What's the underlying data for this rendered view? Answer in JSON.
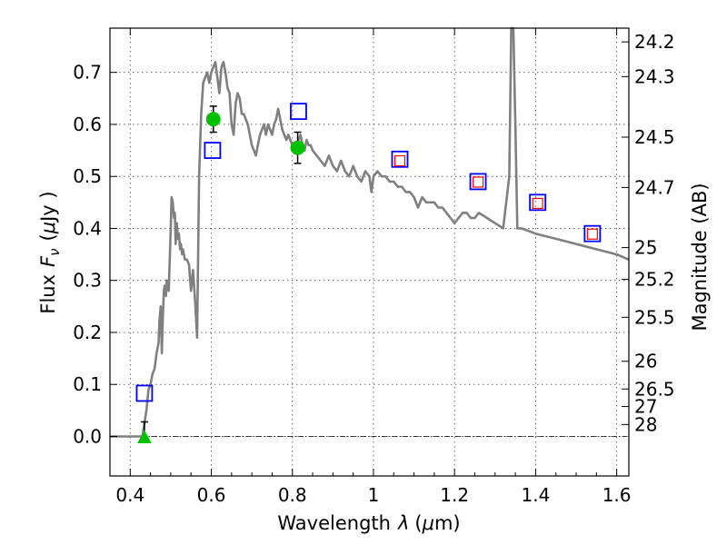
{
  "chart_data": {
    "type": "scatter",
    "title": "",
    "xlabel_prefix": "Wavelength",
    "xlabel_symbol": "λ",
    "xlabel_unit_open": "(",
    "xlabel_unit_mu": "μ",
    "xlabel_unit_rest": "m)",
    "ylabel_prefix": "Flux",
    "ylabel_symbol": "F",
    "ylabel_symbol_sub": "ν",
    "ylabel_unit_open": "(",
    "ylabel_unit_mu": "μ",
    "ylabel_unit_rest": "Jy )",
    "y2label": "Magnitude (AB)",
    "xlim": [
      0.35,
      1.63
    ],
    "ylim": [
      -0.076,
      0.785
    ],
    "grid": true,
    "xticks": [
      0.4,
      0.6,
      0.8,
      1.0,
      1.2,
      1.4,
      1.6
    ],
    "xtick_labels": [
      "0.4",
      "0.6",
      "0.8",
      "1",
      "1.2",
      "1.4",
      "1.6"
    ],
    "yticks": [
      0.0,
      0.1,
      0.2,
      0.3,
      0.4,
      0.5,
      0.6,
      0.7
    ],
    "ytick_labels": [
      "0.0",
      "0.1",
      "0.2",
      "0.3",
      "0.4",
      "0.5",
      "0.6",
      "0.7"
    ],
    "mag_ticks": [
      "24.2",
      "24.3",
      "24.5",
      "24.7",
      "25",
      "25.2",
      "25.5",
      "26",
      "26.5",
      "27",
      "28"
    ],
    "colors": {
      "model": "#808080",
      "open_square": "#0000ff",
      "inner_square": "#ff0000",
      "detection": "#00c000",
      "error_bar": "#000000"
    },
    "series": [
      {
        "kind": "model_spectrum",
        "x": [
          0.35,
          0.43,
          0.44,
          0.445,
          0.45,
          0.455,
          0.46,
          0.465,
          0.47,
          0.472,
          0.475,
          0.478,
          0.48,
          0.483,
          0.485,
          0.488,
          0.49,
          0.495,
          0.5,
          0.502,
          0.505,
          0.508,
          0.51,
          0.512,
          0.515,
          0.518,
          0.52,
          0.523,
          0.525,
          0.528,
          0.53,
          0.535,
          0.54,
          0.545,
          0.55,
          0.555,
          0.56,
          0.565,
          0.57,
          0.575,
          0.58,
          0.585,
          0.59,
          0.595,
          0.6,
          0.605,
          0.61,
          0.615,
          0.62,
          0.625,
          0.63,
          0.635,
          0.64,
          0.645,
          0.65,
          0.655,
          0.66,
          0.665,
          0.67,
          0.675,
          0.68,
          0.685,
          0.69,
          0.695,
          0.7,
          0.705,
          0.71,
          0.715,
          0.72,
          0.725,
          0.73,
          0.735,
          0.74,
          0.745,
          0.75,
          0.755,
          0.76,
          0.765,
          0.77,
          0.775,
          0.78,
          0.785,
          0.79,
          0.795,
          0.8,
          0.805,
          0.81,
          0.815,
          0.82,
          0.825,
          0.83,
          0.835,
          0.84,
          0.845,
          0.85,
          0.86,
          0.87,
          0.88,
          0.89,
          0.9,
          0.91,
          0.92,
          0.93,
          0.94,
          0.95,
          0.96,
          0.97,
          0.98,
          0.99,
          0.995,
          1.0,
          1.01,
          1.02,
          1.03,
          1.04,
          1.05,
          1.06,
          1.07,
          1.08,
          1.09,
          1.1,
          1.11,
          1.12,
          1.13,
          1.14,
          1.15,
          1.16,
          1.17,
          1.18,
          1.19,
          1.2,
          1.21,
          1.22,
          1.23,
          1.24,
          1.25,
          1.26,
          1.28,
          1.3,
          1.32,
          1.335,
          1.34,
          1.345,
          1.35,
          1.355,
          1.36,
          1.365,
          1.4,
          1.45,
          1.5,
          1.55,
          1.6,
          1.63
        ],
        "y": [
          0.0,
          0.0,
          0.05,
          0.09,
          0.1,
          0.12,
          0.13,
          0.16,
          0.18,
          0.22,
          0.25,
          0.16,
          0.22,
          0.28,
          0.29,
          0.27,
          0.3,
          0.28,
          0.4,
          0.46,
          0.45,
          0.42,
          0.43,
          0.37,
          0.41,
          0.38,
          0.39,
          0.36,
          0.37,
          0.35,
          0.36,
          0.34,
          0.34,
          0.33,
          0.28,
          0.32,
          0.26,
          0.19,
          0.5,
          0.62,
          0.68,
          0.69,
          0.7,
          0.68,
          0.7,
          0.71,
          0.72,
          0.69,
          0.66,
          0.71,
          0.72,
          0.7,
          0.67,
          0.66,
          0.6,
          0.58,
          0.64,
          0.66,
          0.65,
          0.62,
          0.62,
          0.61,
          0.6,
          0.58,
          0.56,
          0.55,
          0.54,
          0.56,
          0.58,
          0.59,
          0.6,
          0.58,
          0.6,
          0.59,
          0.58,
          0.6,
          0.61,
          0.63,
          0.61,
          0.59,
          0.58,
          0.57,
          0.58,
          0.57,
          0.56,
          0.55,
          0.56,
          0.57,
          0.58,
          0.56,
          0.55,
          0.57,
          0.56,
          0.56,
          0.55,
          0.54,
          0.53,
          0.52,
          0.54,
          0.52,
          0.51,
          0.53,
          0.51,
          0.5,
          0.52,
          0.5,
          0.49,
          0.51,
          0.5,
          0.47,
          0.5,
          0.51,
          0.5,
          0.5,
          0.49,
          0.49,
          0.48,
          0.48,
          0.47,
          0.47,
          0.46,
          0.44,
          0.46,
          0.45,
          0.45,
          0.45,
          0.44,
          0.44,
          0.43,
          0.42,
          0.41,
          0.42,
          0.43,
          0.43,
          0.42,
          0.42,
          0.43,
          0.42,
          0.41,
          0.4,
          0.5,
          0.79,
          0.79,
          0.6,
          0.4,
          0.4,
          0.4,
          0.39,
          0.38,
          0.37,
          0.36,
          0.35,
          0.34
        ]
      },
      {
        "kind": "open_squares",
        "x": [
          0.435,
          0.603,
          0.815,
          1.065,
          1.258,
          1.405,
          1.54
        ],
        "y": [
          0.083,
          0.55,
          0.625,
          0.533,
          0.49,
          0.45,
          0.39
        ]
      },
      {
        "kind": "inner_squares",
        "x": [
          1.065,
          1.258,
          1.405,
          1.54
        ],
        "y": [
          0.53,
          0.489,
          0.448,
          0.389
        ]
      },
      {
        "kind": "detections",
        "x": [
          0.605,
          0.813
        ],
        "y": [
          0.61,
          0.555
        ],
        "err": [
          0.025,
          0.03
        ]
      },
      {
        "kind": "upper_limit",
        "x": [
          0.435
        ],
        "y": [
          0.0
        ],
        "err_top": [
          0.028
        ]
      }
    ]
  }
}
